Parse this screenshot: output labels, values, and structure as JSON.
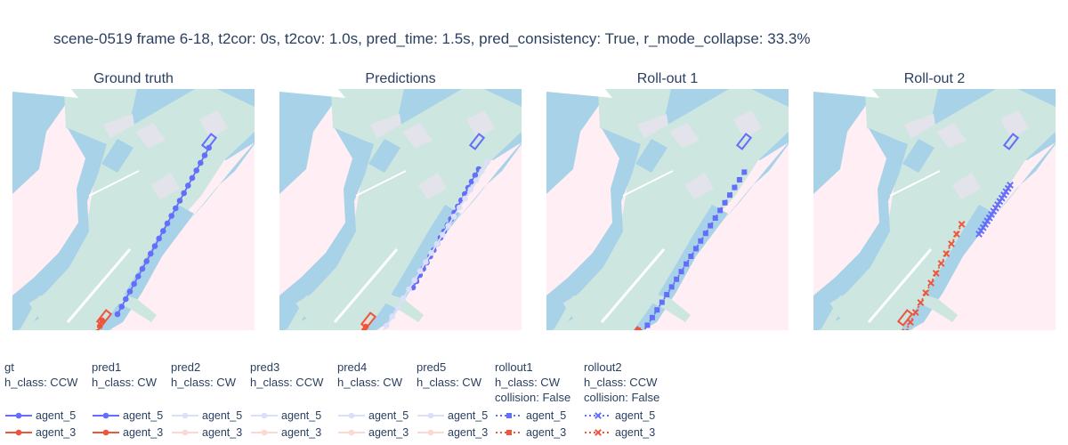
{
  "title": "scene-0519 frame 6-18, t2cor: 0s, t2cov: 1.0s, pred_time: 1.5s, pred_consistency: True, r_mode_collapse: 33.3%",
  "colors": {
    "background": "#ffeef3",
    "walkway": "#a8d2e8",
    "lane": "#cde6e0",
    "crossing": "#e3e3ec",
    "divider": "#ffffff",
    "agent_5": "#636efa",
    "agent_3": "#ef553b",
    "agent_5_faint": "#dcdffb",
    "agent_3_faint": "#fbd9d3"
  },
  "chart_data": [
    {
      "type": "scatter",
      "title": "Ground truth",
      "series": [
        {
          "name": "agent_5",
          "style": "line+circle",
          "x": [
            118,
            122.7,
            127.3,
            132,
            136.7,
            141.3,
            146,
            150.7,
            155.3,
            160,
            164.7,
            169.3,
            174,
            178.7,
            183.3,
            188,
            192.7,
            197.3,
            202,
            206.7,
            211.3,
            216,
            220.7
          ],
          "y": [
            253,
            244.5,
            236,
            227.5,
            219,
            210.5,
            202,
            193.5,
            185,
            176.5,
            168,
            159.5,
            151,
            142.5,
            134,
            125.5,
            117,
            108.5,
            100,
            91.5,
            83,
            74.5,
            66
          ],
          "box": [
            221,
            59
          ]
        },
        {
          "name": "agent_3",
          "style": "line+circle",
          "x": [
            75,
            77.6,
            80.2,
            82.7,
            85.3,
            87.9,
            90.5,
            93.1,
            95.6,
            98.2,
            100.8
          ],
          "y": [
            326,
            319.4,
            312.8,
            306.2,
            299.6,
            293,
            286.4,
            279.8,
            273.2,
            266.6,
            260
          ],
          "box": [
            103,
            257
          ]
        }
      ]
    },
    {
      "type": "scatter",
      "title": "Predictions",
      "series": [
        {
          "name": "agent_5",
          "style": "line+circle",
          "x": [
            150,
            153.9,
            157.8,
            161.6,
            165.5,
            169.4,
            173.3,
            177.2,
            181,
            184.9,
            188.8,
            192.7,
            196.5,
            200.4,
            204.3,
            208.2,
            212.1,
            216,
            219.9,
            223.9
          ],
          "y": [
            223,
            216,
            209,
            202,
            195,
            188,
            181,
            174,
            167,
            160,
            153,
            146,
            139,
            132,
            125,
            118,
            111,
            104,
            97,
            90
          ],
          "box": [
            222,
            59
          ]
        },
        {
          "name": "agent_5",
          "style": "line+circle",
          "faint": true,
          "x": [
            114,
            120.3,
            126.6,
            132.9,
            139.2,
            145.5,
            151.8,
            158.1,
            164.4,
            170.7,
            177,
            183.3,
            189.6,
            195.9,
            202.2,
            208.5,
            214.8,
            221.1,
            227.4,
            233.6
          ],
          "y": [
            276,
            265.8,
            255.6,
            245.4,
            235.2,
            225,
            214.8,
            204.6,
            194.4,
            184.2,
            174,
            163.8,
            153.6,
            143.4,
            133.2,
            123,
            112.8,
            102.6,
            92.4,
            82
          ]
        },
        {
          "name": "agent_3",
          "style": "line+circle",
          "faint": true,
          "x": [
            48,
            51.8,
            55.6,
            59.4,
            63.2,
            67,
            70.8,
            74.6,
            78.4,
            82.2,
            86,
            89.8,
            93.6,
            97.4
          ],
          "y": [
            362,
            354.2,
            346.4,
            338.6,
            330.8,
            323,
            315.2,
            307.4,
            299.6,
            291.8,
            284,
            276.2,
            268.4,
            260.6
          ]
        },
        {
          "name": "agent_3",
          "style": "line+circle",
          "x": [
            78,
            79.9,
            81.8,
            83.7,
            85.6,
            87.5,
            89.4,
            91.3,
            93.2,
            95.1,
            97
          ],
          "y": [
            310,
            305.7,
            301.4,
            297.1,
            292.8,
            288.5,
            284.2,
            279.9,
            275.6,
            271.3,
            267
          ],
          "box": [
            100,
            260
          ]
        }
      ]
    },
    {
      "type": "scatter",
      "title": "Roll-out 1",
      "series": [
        {
          "name": "agent_5",
          "style": "dot+square",
          "x": [
            108,
            113.4,
            118.9,
            124.3,
            129.8,
            135.2,
            140.7,
            146.1,
            151.5,
            157,
            162.4,
            167.9,
            173.3,
            178.8,
            184.2,
            189.7,
            195.1,
            200.5,
            206,
            211.4,
            216.9,
            222.3
          ],
          "y": [
            274,
            265.4,
            256.8,
            248.2,
            239.6,
            231,
            222.4,
            213.8,
            205.2,
            196.6,
            188,
            179.4,
            170.8,
            162.2,
            153.6,
            145,
            136.4,
            127.8,
            119.2,
            110.6,
            102,
            93.4
          ],
          "box": [
            222,
            59
          ]
        },
        {
          "name": "agent_3",
          "style": "dot+square",
          "x": [
            97,
            98.2,
            99.4,
            100.6,
            101.8,
            103
          ],
          "y": [
            282,
            279.8,
            277.6,
            275.4,
            273.2,
            271
          ],
          "box": [
            100,
            276
          ]
        }
      ]
    },
    {
      "type": "scatter",
      "title": "Roll-out 2",
      "series": [
        {
          "name": "agent_5",
          "style": "dot+x",
          "x": [
            186,
            188.3,
            190.7,
            193,
            195.3,
            197.7,
            200,
            202.3,
            204.7,
            207,
            209.3,
            211.7,
            214,
            216.3,
            218.7,
            221
          ],
          "y": [
            163,
            159.3,
            155.7,
            152,
            148.3,
            144.7,
            141,
            137.3,
            133.7,
            130,
            126.3,
            122.7,
            119,
            115.3,
            111.7,
            108
          ],
          "box": [
            222,
            59
          ]
        },
        {
          "name": "agent_3",
          "style": "dot+x",
          "x": [
            57,
            62.8,
            68.5,
            74.3,
            80.1,
            85.8,
            91.6,
            97.4,
            103.1,
            108.9,
            114.7,
            120.4,
            126.2,
            132,
            137.7,
            143.5,
            149.3,
            155,
            160.8,
            166.6
          ],
          "y": [
            361,
            350,
            339,
            328,
            317,
            306,
            295,
            284,
            273,
            262,
            251,
            240,
            229,
            218,
            207,
            196,
            185,
            174,
            163,
            152
          ],
          "box": [
            103,
            257
          ]
        }
      ]
    }
  ],
  "legend": [
    {
      "lines": [
        "gt",
        "h_class: CCW"
      ],
      "items": [
        {
          "label": "agent_5",
          "color": "agent_5",
          "marker": "circle",
          "dash": false
        },
        {
          "label": "agent_3",
          "color": "agent_3",
          "marker": "circle",
          "dash": false
        }
      ]
    },
    {
      "lines": [
        "pred1",
        "h_class: CW"
      ],
      "items": [
        {
          "label": "agent_5",
          "color": "agent_5",
          "marker": "circle",
          "dash": false
        },
        {
          "label": "agent_3",
          "color": "agent_3",
          "marker": "circle",
          "dash": false
        }
      ]
    },
    {
      "lines": [
        "pred2",
        "h_class: CW"
      ],
      "items": [
        {
          "label": "agent_5",
          "color": "agent_5_faint",
          "marker": "circle",
          "dash": false
        },
        {
          "label": "agent_3",
          "color": "agent_3_faint",
          "marker": "circle",
          "dash": false
        }
      ]
    },
    {
      "lines": [
        "pred3",
        "h_class: CCW"
      ],
      "items": [
        {
          "label": "agent_5",
          "color": "agent_5_faint",
          "marker": "circle",
          "dash": false
        },
        {
          "label": "agent_3",
          "color": "agent_3_faint",
          "marker": "circle",
          "dash": false
        }
      ]
    },
    {
      "lines": [
        "pred4",
        "h_class: CW"
      ],
      "items": [
        {
          "label": "agent_5",
          "color": "agent_5_faint",
          "marker": "circle",
          "dash": false
        },
        {
          "label": "agent_3",
          "color": "agent_3_faint",
          "marker": "circle",
          "dash": false
        }
      ]
    },
    {
      "lines": [
        "pred5",
        "h_class: CW"
      ],
      "items": [
        {
          "label": "agent_5",
          "color": "agent_5_faint",
          "marker": "circle",
          "dash": false
        },
        {
          "label": "agent_3",
          "color": "agent_3_faint",
          "marker": "circle",
          "dash": false
        }
      ]
    },
    {
      "lines": [
        "rollout1",
        "h_class: CW",
        "collision: False"
      ],
      "items": [
        {
          "label": "agent_5",
          "color": "agent_5",
          "marker": "square",
          "dash": true
        },
        {
          "label": "agent_3",
          "color": "agent_3",
          "marker": "square",
          "dash": true
        }
      ]
    },
    {
      "lines": [
        "rollout2",
        "h_class: CCW",
        "collision: False"
      ],
      "items": [
        {
          "label": "agent_5",
          "color": "agent_5",
          "marker": "x",
          "dash": true
        },
        {
          "label": "agent_3",
          "color": "agent_3",
          "marker": "x",
          "dash": true
        }
      ]
    }
  ]
}
